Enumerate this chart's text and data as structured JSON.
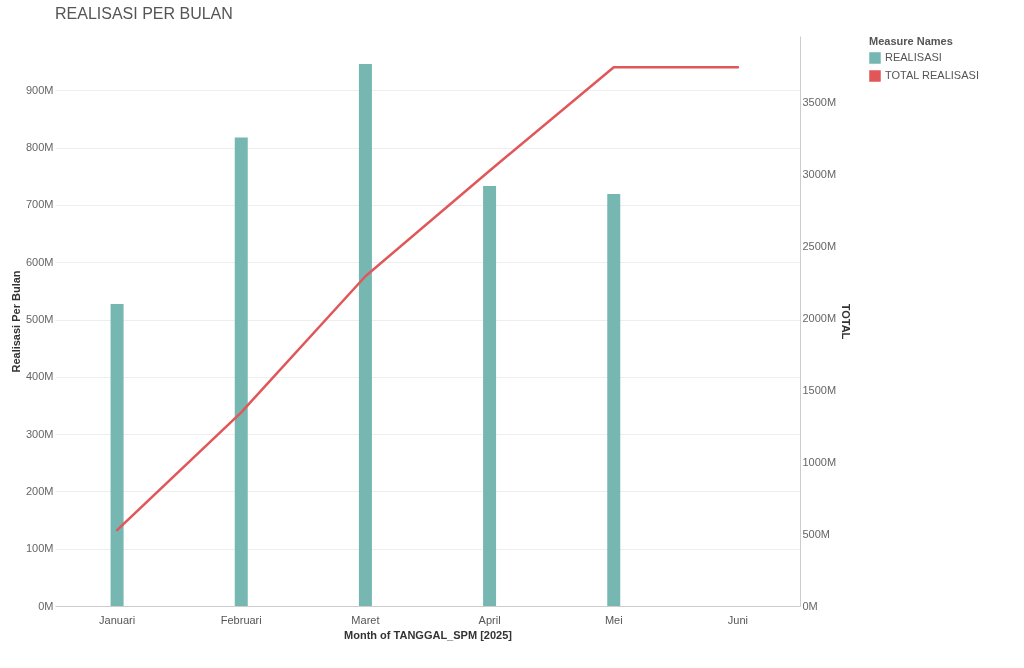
{
  "chart_data": {
    "type": "bar",
    "title": "REALISASI PER BULAN",
    "xlabel": "Month of TANGGAL_SPM [2025]",
    "ylabel": "Realisasi Per Bulan",
    "y2label": "TOTAL",
    "legend_title": "Measure Names",
    "legend": "right",
    "grid": "y",
    "categories": [
      "Januari",
      "Februari",
      "Maret",
      "April",
      "Mei",
      "Juni"
    ],
    "series": [
      {
        "name": "REALISASI",
        "color": "#76b7b2",
        "values": [
          527,
          818,
          946,
          733,
          719,
          null
        ]
      },
      {
        "name": "TOTAL REALISASI",
        "type": "line",
        "axis": "y2",
        "color": "#e15759",
        "values": [
          527,
          1345,
          2291,
          3024,
          3743,
          3743
        ]
      }
    ],
    "ylim": [
      0,
      995
    ],
    "yticks": [
      {
        "value": 0,
        "label": "0M"
      },
      {
        "value": 100,
        "label": "100M"
      },
      {
        "value": 200,
        "label": "200M"
      },
      {
        "value": 300,
        "label": "300M"
      },
      {
        "value": 400,
        "label": "400M"
      },
      {
        "value": 500,
        "label": "500M"
      },
      {
        "value": 600,
        "label": "600M"
      },
      {
        "value": 700,
        "label": "700M"
      },
      {
        "value": 800,
        "label": "800M"
      },
      {
        "value": 900,
        "label": "900M"
      }
    ],
    "y2lim": [
      0,
      3960
    ],
    "y2ticks": [
      {
        "value": 0,
        "label": "0M"
      },
      {
        "value": 500,
        "label": "500M"
      },
      {
        "value": 1000,
        "label": "1000M"
      },
      {
        "value": 1500,
        "label": "1500M"
      },
      {
        "value": 2000,
        "label": "2000M"
      },
      {
        "value": 2500,
        "label": "2500M"
      },
      {
        "value": 3000,
        "label": "3000M"
      },
      {
        "value": 3500,
        "label": "3500M"
      }
    ]
  }
}
